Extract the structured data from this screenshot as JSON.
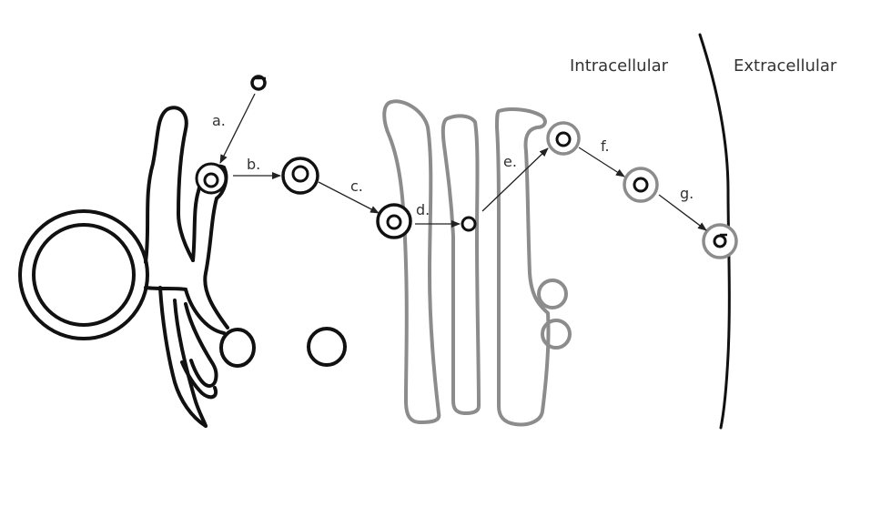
{
  "labels": {
    "intracellular": "Intracellular",
    "extracellular": "Extracellular"
  },
  "steps": {
    "a": "a.",
    "b": "b.",
    "c": "c.",
    "d": "d.",
    "e": "e.",
    "f": "f.",
    "g": "g."
  },
  "colors": {
    "er_outline": "#111111",
    "golgi_outline": "#8c8c8c",
    "vesicle_outline": "#111111",
    "arrow": "#222222",
    "label_text": "#333333"
  }
}
